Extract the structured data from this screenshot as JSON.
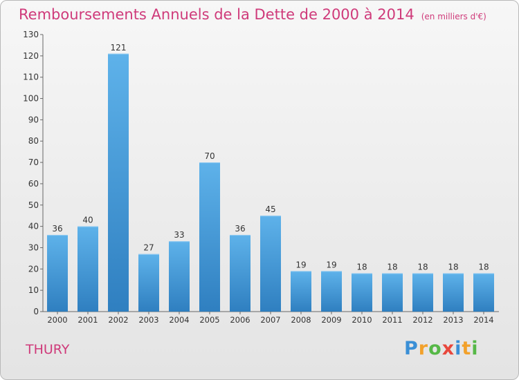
{
  "title": "Remboursements Annuels de la Dette de 2000 à 2014",
  "unit_note": "(en milliers d'€)",
  "place_name": "THURY",
  "logo": {
    "letters": [
      "P",
      "r",
      "o",
      "x",
      "i",
      "t",
      "i"
    ],
    "colors": [
      "#3a8fd6",
      "#f2a12b",
      "#56b847",
      "#e8473c",
      "#3a8fd6",
      "#f2a12b",
      "#56b847"
    ]
  },
  "chart_data": {
    "type": "bar",
    "categories": [
      "2000",
      "2001",
      "2002",
      "2003",
      "2004",
      "2005",
      "2006",
      "2007",
      "2008",
      "2009",
      "2010",
      "2011",
      "2012",
      "2013",
      "2014"
    ],
    "values": [
      36,
      40,
      121,
      27,
      33,
      70,
      36,
      45,
      19,
      19,
      18,
      18,
      18,
      18,
      18
    ],
    "ylim": [
      0,
      130
    ],
    "yticks": [
      0,
      10,
      20,
      30,
      40,
      50,
      60,
      70,
      80,
      90,
      100,
      110,
      120,
      130
    ],
    "grid": false,
    "data_labels": true,
    "colors": {
      "bar_top": "#5eb2ea",
      "bar_bottom": "#2f7fc0",
      "axis": "#666666",
      "text": "#333333"
    }
  }
}
